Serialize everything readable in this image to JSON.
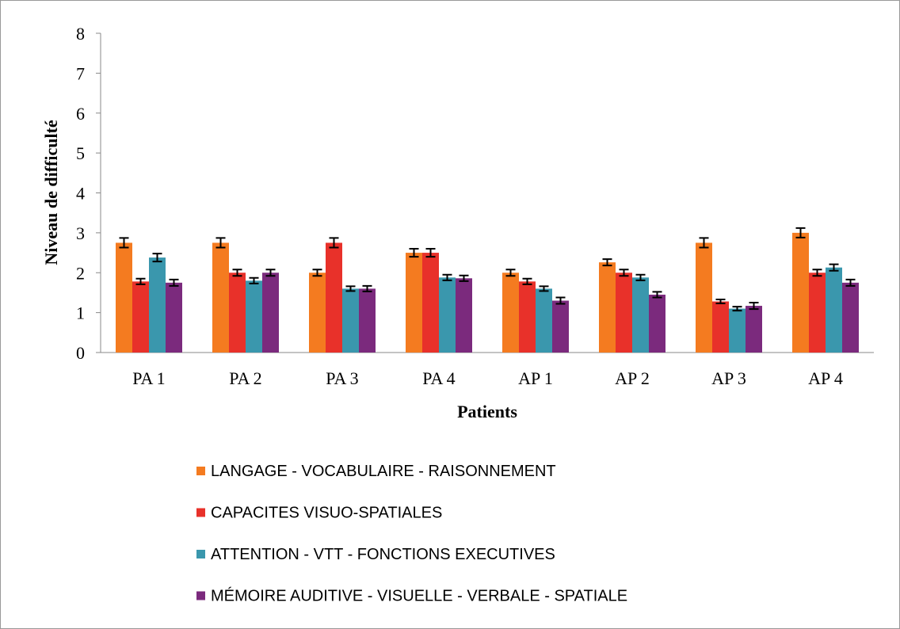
{
  "chart_data": {
    "type": "bar",
    "x_label": "Patients",
    "y_label": "Niveau de difficulté",
    "categories": [
      "PA 1",
      "PA 2",
      "PA 3",
      "PA 4",
      "AP 1",
      "AP 2",
      "AP 3",
      "AP 4"
    ],
    "ylim": [
      0,
      8
    ],
    "yticks": [
      0,
      1,
      2,
      3,
      4,
      5,
      6,
      7,
      8
    ],
    "series": [
      {
        "name": "LANGAGE - VOCABULAIRE - RAISONNEMENT",
        "color": "#f47b20",
        "values": [
          2.75,
          2.75,
          2.0,
          2.5,
          2.0,
          2.26,
          2.75,
          3.0
        ],
        "errors": [
          0.12,
          0.12,
          0.08,
          0.1,
          0.08,
          0.08,
          0.12,
          0.12
        ]
      },
      {
        "name": "CAPACITES VISUO-SPATIALES",
        "color": "#e8312a",
        "values": [
          1.78,
          2.0,
          2.75,
          2.5,
          1.78,
          2.0,
          1.28,
          2.0
        ],
        "errors": [
          0.07,
          0.08,
          0.12,
          0.1,
          0.07,
          0.08,
          0.05,
          0.08
        ]
      },
      {
        "name": "ATTENTION - VTT - FONCTIONS EXECUTIVES",
        "color": "#3a97ad",
        "values": [
          2.38,
          1.8,
          1.6,
          1.88,
          1.6,
          1.88,
          1.1,
          2.13
        ],
        "errors": [
          0.1,
          0.07,
          0.06,
          0.07,
          0.06,
          0.07,
          0.05,
          0.08
        ]
      },
      {
        "name": "MÉMOIRE AUDITIVE - VISUELLE - VERBALE - SPATIALE",
        "color": "#7b2a7d",
        "values": [
          1.75,
          2.0,
          1.6,
          1.86,
          1.3,
          1.45,
          1.17,
          1.75
        ],
        "errors": [
          0.08,
          0.08,
          0.07,
          0.07,
          0.08,
          0.07,
          0.08,
          0.08
        ]
      }
    ]
  }
}
